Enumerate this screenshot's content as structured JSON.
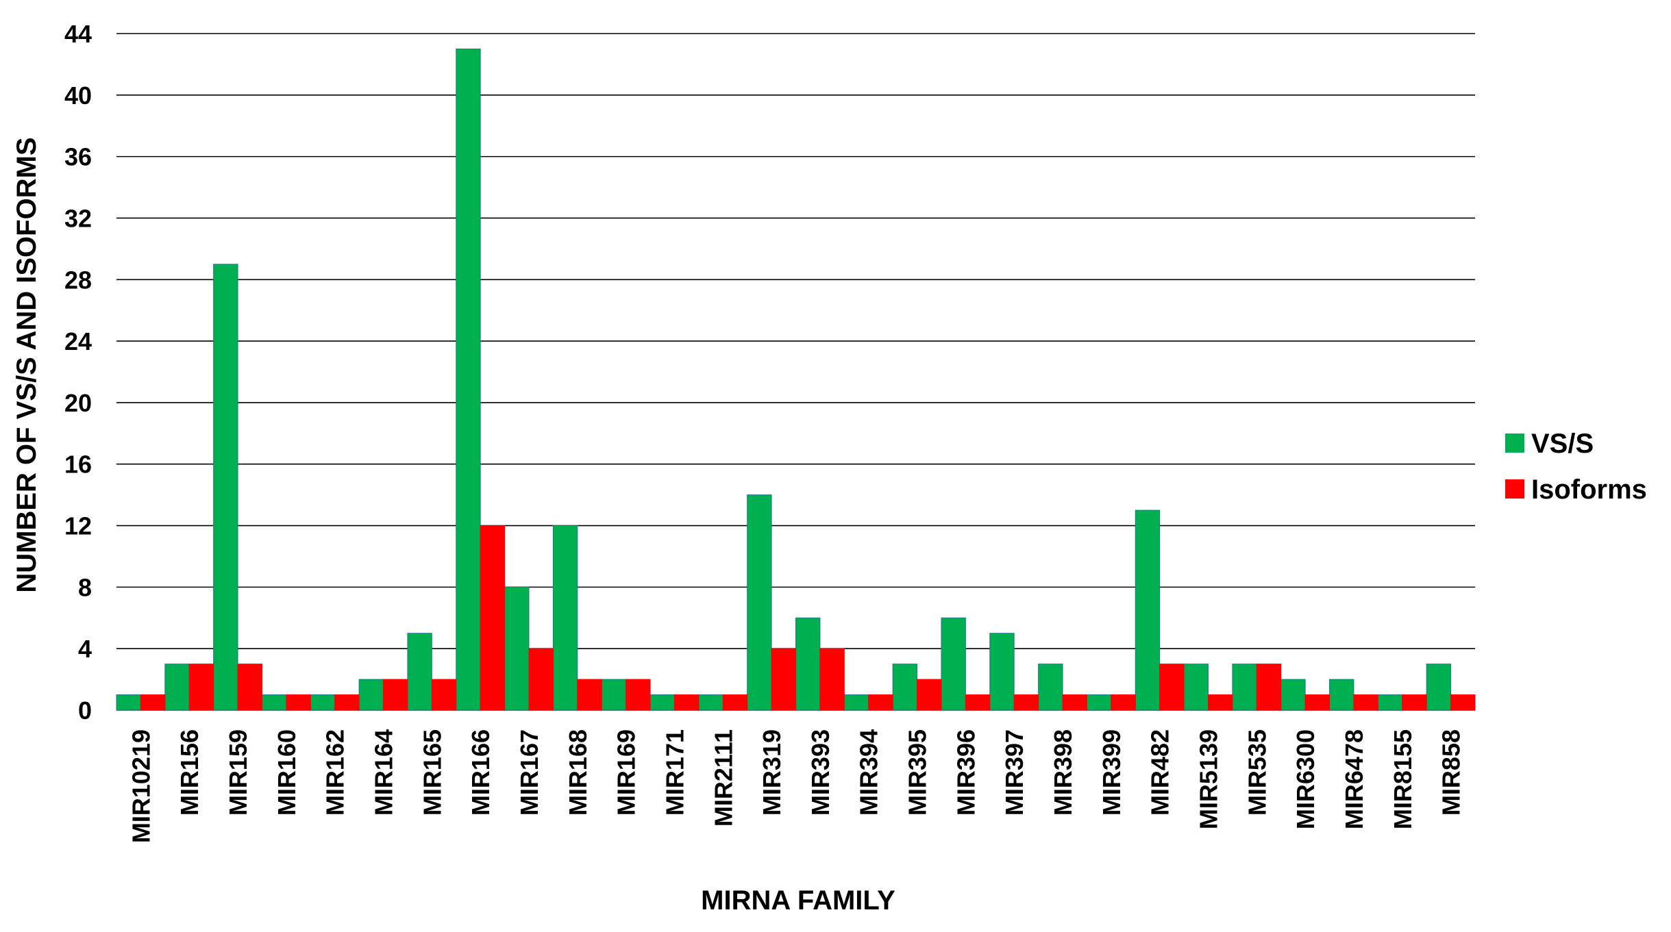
{
  "chart_data": {
    "type": "bar",
    "title": "",
    "xlabel": "MIRNA FAMILY",
    "ylabel": "NUMBER OF VS/S AND ISOFORMS",
    "ylim": [
      0,
      44
    ],
    "yticks": [
      0,
      4,
      8,
      12,
      16,
      20,
      24,
      28,
      32,
      36,
      40,
      44
    ],
    "grid": "horizontal",
    "legend_position": "right",
    "categories": [
      "MIR10219",
      "MIR156",
      "MIR159",
      "MIR160",
      "MIR162",
      "MIR164",
      "MIR165",
      "MIR166",
      "MIR167",
      "MIR168",
      "MIR169",
      "MIR171",
      "MIR2111",
      "MIR319",
      "MIR393",
      "MIR394",
      "MIR395",
      "MIR396",
      "MIR397",
      "MIR398",
      "MIR399",
      "MIR482",
      "MIR5139",
      "MIR535",
      "MIR6300",
      "MIR6478",
      "MIR8155",
      "MIR858"
    ],
    "series": [
      {
        "name": "VS/S",
        "color": "#00b050",
        "values": [
          1,
          3,
          29,
          1,
          1,
          2,
          5,
          43,
          8,
          12,
          2,
          1,
          1,
          14,
          6,
          1,
          3,
          6,
          5,
          3,
          1,
          13,
          3,
          3,
          2,
          2,
          1,
          3
        ]
      },
      {
        "name": "Isoforms",
        "color": "#ff0000",
        "values": [
          1,
          3,
          3,
          1,
          1,
          2,
          2,
          12,
          4,
          2,
          2,
          1,
          1,
          4,
          4,
          1,
          2,
          1,
          1,
          1,
          1,
          3,
          1,
          3,
          1,
          1,
          1,
          1
        ]
      }
    ]
  }
}
